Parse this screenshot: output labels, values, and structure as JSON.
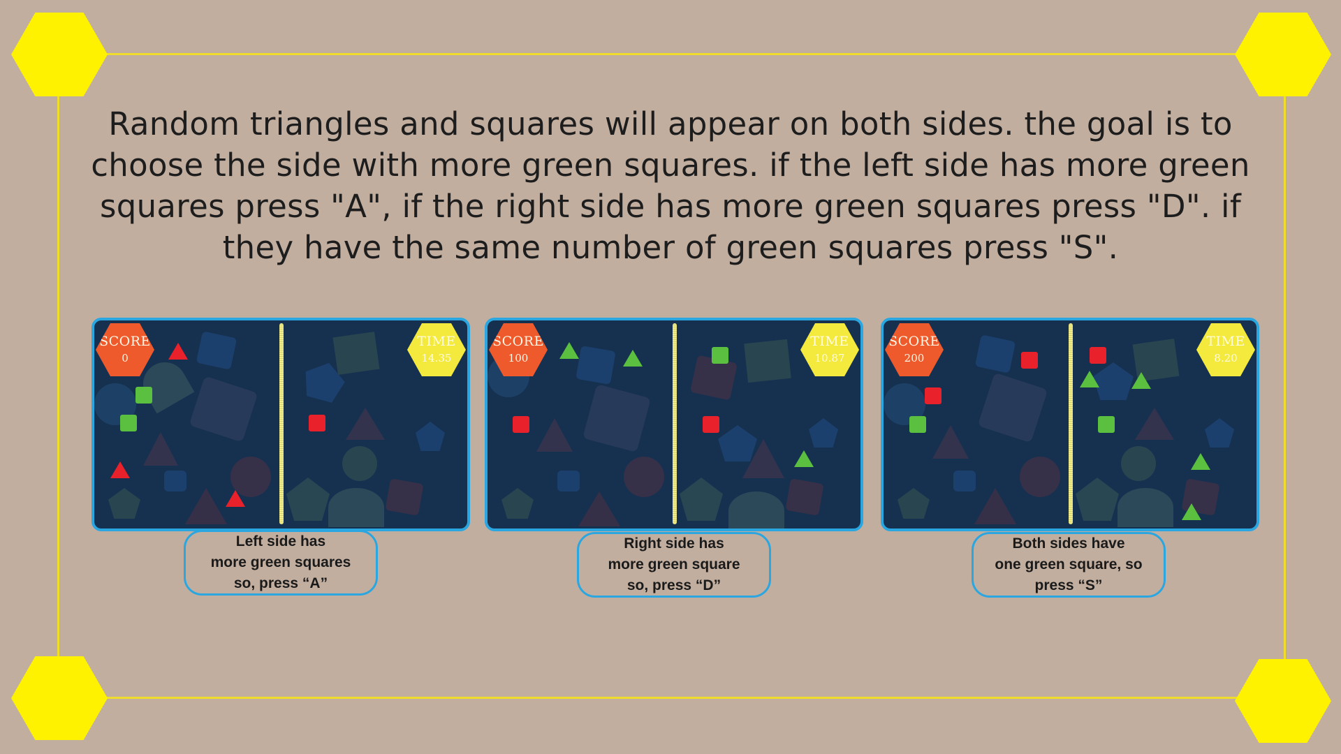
{
  "instructions_text": "Random triangles and squares will appear on both sides. the goal is to choose the side with more green squares. if the left side has more green squares press \"A\", if the right side has more green squares press \"D\". if they have the same number of green squares press \"S\".",
  "colors": {
    "background": "#c2ae9f",
    "frame_line": "#f0dc2a",
    "corner_hex": "#fff200",
    "panel_bg": "#163150",
    "panel_border": "#2aa6e0",
    "score_hex": "#ee5a2c",
    "time_hex": "#f4ea3d",
    "green_shape": "#5bbf3f",
    "red_shape": "#e8212b"
  },
  "examples": [
    {
      "score_label": "SCORE",
      "score_value": "0",
      "time_label": "TIME",
      "time_value": "14.35",
      "caption_lines": [
        "Left side has",
        "more green squares",
        "so, press “A”"
      ],
      "left_green_squares": 2,
      "right_green_squares": 0
    },
    {
      "score_label": "SCORE",
      "score_value": "100",
      "time_label": "TIME",
      "time_value": "10.87",
      "caption_lines": [
        "Right side has",
        "more green square",
        "so, press “D”"
      ],
      "left_green_squares": 0,
      "right_green_squares": 1
    },
    {
      "score_label": "SCORE",
      "score_value": "200",
      "time_label": "TIME",
      "time_value": "8.20",
      "caption_lines": [
        "Both sides have",
        "one green square, so",
        "press “S”"
      ],
      "left_green_squares": 1,
      "right_green_squares": 1
    }
  ]
}
